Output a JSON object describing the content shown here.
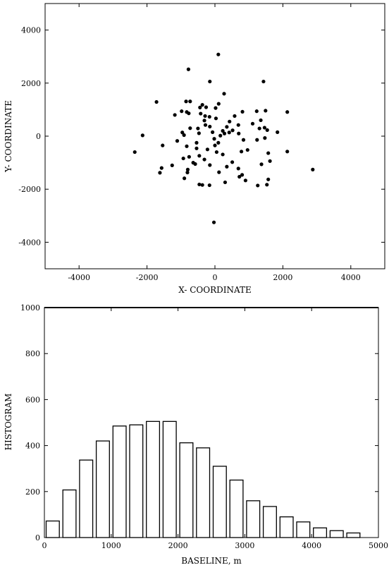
{
  "chart_data": [
    {
      "type": "scatter",
      "xlabel": "X- COORDINATE",
      "ylabel": "Y- COORDINATE",
      "xlim": [
        -5000,
        5000
      ],
      "ylim": [
        -5000,
        5000
      ],
      "xticks": [
        "-4000",
        "-2000",
        "0",
        "2000",
        "4000"
      ],
      "yticks": [
        "-4000",
        "-2000",
        "0",
        "2000",
        "4000"
      ],
      "grid": false,
      "points": [
        [
          100,
          3080
        ],
        [
          -780,
          2520
        ],
        [
          -150,
          2060
        ],
        [
          1430,
          2060
        ],
        [
          270,
          1600
        ],
        [
          -1720,
          1290
        ],
        [
          -850,
          1310
        ],
        [
          -730,
          1310
        ],
        [
          -370,
          1180
        ],
        [
          -260,
          1090
        ],
        [
          -440,
          1080
        ],
        [
          110,
          1220
        ],
        [
          20,
          1060
        ],
        [
          -980,
          940
        ],
        [
          -830,
          910
        ],
        [
          -770,
          860
        ],
        [
          -1180,
          800
        ],
        [
          -420,
          850
        ],
        [
          -290,
          760
        ],
        [
          -160,
          730
        ],
        [
          580,
          760
        ],
        [
          810,
          920
        ],
        [
          1230,
          940
        ],
        [
          1490,
          960
        ],
        [
          2130,
          910
        ],
        [
          -2130,
          30
        ],
        [
          -1540,
          -350
        ],
        [
          -1570,
          -1200
        ],
        [
          -1620,
          -1380
        ],
        [
          -1260,
          -1100
        ],
        [
          -2360,
          -600
        ],
        [
          -1110,
          -180
        ],
        [
          -910,
          40
        ],
        [
          -730,
          300
        ],
        [
          -960,
          140
        ],
        [
          -830,
          -380
        ],
        [
          -930,
          -840
        ],
        [
          -760,
          -780
        ],
        [
          -800,
          -1260
        ],
        [
          -810,
          -1370
        ],
        [
          -900,
          -1590
        ],
        [
          -580,
          -1050
        ],
        [
          -460,
          -740
        ],
        [
          -540,
          -460
        ],
        [
          -540,
          -250
        ],
        [
          -470,
          110
        ],
        [
          -500,
          290
        ],
        [
          -280,
          420
        ],
        [
          -310,
          590
        ],
        [
          -150,
          360
        ],
        [
          -70,
          150
        ],
        [
          -20,
          -100
        ],
        [
          0,
          -350
        ],
        [
          50,
          -600
        ],
        [
          100,
          -250
        ],
        [
          -220,
          -500
        ],
        [
          -310,
          -880
        ],
        [
          -150,
          -1090
        ],
        [
          -460,
          -1820
        ],
        [
          -370,
          -1840
        ],
        [
          -160,
          -1850
        ],
        [
          120,
          -1360
        ],
        [
          230,
          -690
        ],
        [
          350,
          -1150
        ],
        [
          510,
          -980
        ],
        [
          160,
          20
        ],
        [
          230,
          200
        ],
        [
          280,
          100
        ],
        [
          350,
          350
        ],
        [
          420,
          140
        ],
        [
          520,
          220
        ],
        [
          700,
          100
        ],
        [
          840,
          -140
        ],
        [
          960,
          -520
        ],
        [
          780,
          -580
        ],
        [
          690,
          -1220
        ],
        [
          720,
          -1530
        ],
        [
          900,
          -1670
        ],
        [
          800,
          -1460
        ],
        [
          1260,
          -1860
        ],
        [
          1530,
          -1830
        ],
        [
          1570,
          -1630
        ],
        [
          1370,
          -1060
        ],
        [
          1620,
          -940
        ],
        [
          1570,
          -640
        ],
        [
          1240,
          -140
        ],
        [
          1460,
          320
        ],
        [
          1350,
          600
        ],
        [
          1310,
          290
        ],
        [
          1540,
          230
        ],
        [
          1840,
          150
        ],
        [
          1110,
          470
        ],
        [
          2130,
          -580
        ],
        [
          2880,
          -1260
        ],
        [
          -30,
          -3250
        ],
        [
          300,
          -1740
        ],
        [
          430,
          550
        ],
        [
          30,
          670
        ],
        [
          690,
          420
        ],
        [
          1470,
          -70
        ],
        [
          -640,
          -1000
        ]
      ]
    },
    {
      "type": "bar",
      "xlabel": "BASELINE, m",
      "ylabel": "HISTOGRAM",
      "xlim": [
        0,
        5000
      ],
      "ylim": [
        0,
        1000
      ],
      "xticks": [
        "0",
        "1000",
        "2000",
        "3000",
        "4000",
        "5000"
      ],
      "yticks": [
        "0",
        "200",
        "400",
        "600",
        "800",
        "1000"
      ],
      "grid": false,
      "bin_width": 250,
      "x": [
        0,
        250,
        500,
        750,
        1000,
        1250,
        1500,
        1750,
        2000,
        2250,
        2500,
        2750,
        3000,
        3250,
        3500,
        3750,
        4000,
        4250,
        4500
      ],
      "values": [
        72,
        207,
        337,
        420,
        485,
        490,
        505,
        505,
        412,
        390,
        310,
        250,
        160,
        135,
        90,
        68,
        42,
        30,
        20
      ]
    }
  ]
}
